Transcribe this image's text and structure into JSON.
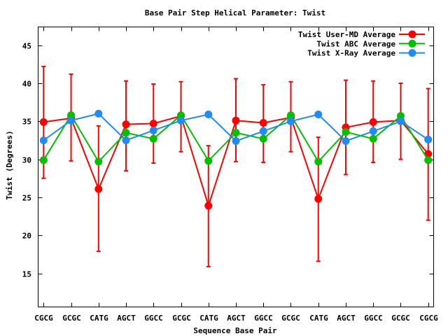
{
  "chart_data": {
    "type": "line",
    "title": "Base Pair Step Helical Parameter: Twist",
    "xlabel": "Sequence Base Pair",
    "ylabel": "Twist (Degrees)",
    "ylim": [
      10.6,
      47.4
    ],
    "yticks": [
      15,
      20,
      25,
      30,
      35,
      40,
      45
    ],
    "categories": [
      "CGCG",
      "GCGC",
      "CATG",
      "AGCT",
      "GGCC",
      "GCGC",
      "CATG",
      "AGCT",
      "GGCC",
      "GCGC",
      "CATG",
      "AGCT",
      "GGCC",
      "GCGC",
      "CGCG"
    ],
    "grid": false,
    "legend_position": "top-right",
    "series": [
      {
        "name": "Twist User-MD Average",
        "color": "#ff0000",
        "values": [
          34.9,
          35.4,
          26.1,
          34.6,
          34.7,
          35.7,
          23.9,
          35.1,
          34.8,
          35.5,
          24.8,
          34.2,
          34.9,
          35.1,
          30.7
        ],
        "error_low": [
          27.5,
          29.8,
          17.9,
          28.5,
          29.5,
          31.0,
          15.9,
          29.7,
          29.6,
          31.0,
          16.6,
          28.0,
          29.6,
          30.0,
          22.0
        ],
        "error_high": [
          42.2,
          41.2,
          34.4,
          40.3,
          39.9,
          40.2,
          31.8,
          40.6,
          39.8,
          40.2,
          32.9,
          40.4,
          40.3,
          40.0,
          39.3
        ]
      },
      {
        "name": "Twist ABC Average",
        "color": "#00c000",
        "values": [
          29.9,
          35.8,
          29.7,
          33.5,
          32.7,
          35.8,
          29.8,
          33.5,
          32.7,
          35.8,
          29.7,
          33.6,
          32.7,
          35.7,
          29.9
        ]
      },
      {
        "name": "Twist X-Ray Average",
        "color": "#1e8cf0",
        "values": [
          32.5,
          35.1,
          36.0,
          32.5,
          33.8,
          35.1,
          35.9,
          32.4,
          33.7,
          35.0,
          35.9,
          32.4,
          33.7,
          35.0,
          32.6
        ]
      }
    ]
  }
}
